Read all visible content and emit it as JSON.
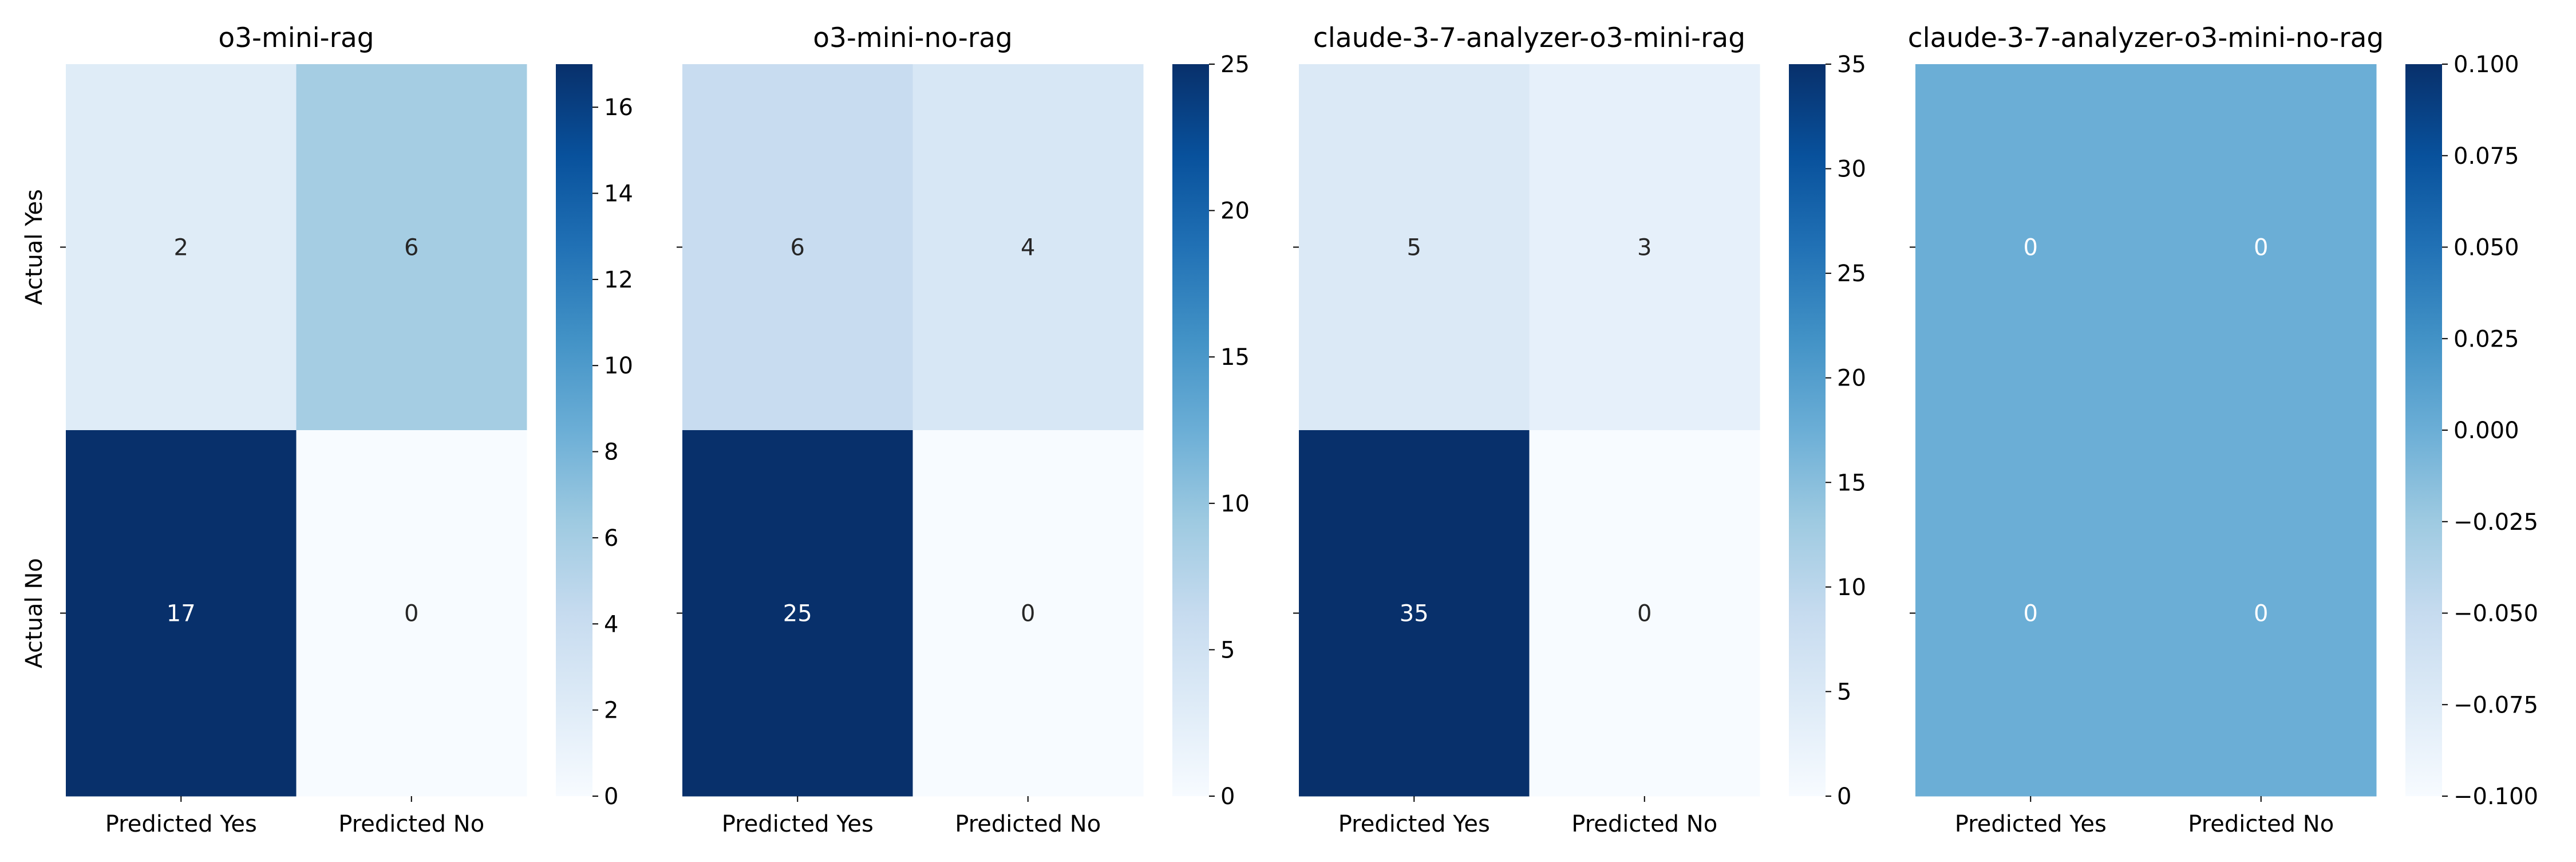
{
  "chart_data": [
    {
      "type": "heatmap",
      "title": "o3-mini-rag",
      "x_categories": [
        "Predicted Yes",
        "Predicted No"
      ],
      "y_categories": [
        "Actual Yes",
        "Actual No"
      ],
      "values": [
        [
          2,
          6
        ],
        [
          17,
          0
        ]
      ],
      "colormap": "Blues",
      "colorbar": {
        "range": [
          0,
          17
        ],
        "ticks": [
          0,
          2,
          4,
          6,
          8,
          10,
          12,
          14,
          16
        ],
        "tick_labels": [
          "0",
          "2",
          "4",
          "6",
          "8",
          "10",
          "12",
          "14",
          "16"
        ]
      },
      "show_y_labels": true
    },
    {
      "type": "heatmap",
      "title": "o3-mini-no-rag",
      "x_categories": [
        "Predicted Yes",
        "Predicted No"
      ],
      "y_categories": [
        "Actual Yes",
        "Actual No"
      ],
      "values": [
        [
          6,
          4
        ],
        [
          25,
          0
        ]
      ],
      "colormap": "Blues",
      "colorbar": {
        "range": [
          0,
          25
        ],
        "ticks": [
          0,
          5,
          10,
          15,
          20,
          25
        ],
        "tick_labels": [
          "0",
          "5",
          "10",
          "15",
          "20",
          "25"
        ]
      },
      "show_y_labels": false
    },
    {
      "type": "heatmap",
      "title": "claude-3-7-analyzer-o3-mini-rag",
      "x_categories": [
        "Predicted Yes",
        "Predicted No"
      ],
      "y_categories": [
        "Actual Yes",
        "Actual No"
      ],
      "values": [
        [
          5,
          3
        ],
        [
          35,
          0
        ]
      ],
      "colormap": "Blues",
      "colorbar": {
        "range": [
          0,
          35
        ],
        "ticks": [
          0,
          5,
          10,
          15,
          20,
          25,
          30,
          35
        ],
        "tick_labels": [
          "0",
          "5",
          "10",
          "15",
          "20",
          "25",
          "30",
          "35"
        ]
      },
      "show_y_labels": false
    },
    {
      "type": "heatmap",
      "title": "claude-3-7-analyzer-o3-mini-no-rag",
      "x_categories": [
        "Predicted Yes",
        "Predicted No"
      ],
      "y_categories": [
        "Actual Yes",
        "Actual No"
      ],
      "values": [
        [
          0,
          0
        ],
        [
          0,
          0
        ]
      ],
      "colormap": "Blues",
      "colorbar": {
        "range": [
          -0.1,
          0.1
        ],
        "ticks": [
          -0.1,
          -0.075,
          -0.05,
          -0.025,
          0,
          0.025,
          0.05,
          0.075,
          0.1
        ],
        "tick_labels": [
          "−0.100",
          "−0.075",
          "−0.050",
          "−0.025",
          "0.000",
          "0.025",
          "0.050",
          "0.075",
          "0.100"
        ]
      },
      "show_y_labels": false
    }
  ]
}
